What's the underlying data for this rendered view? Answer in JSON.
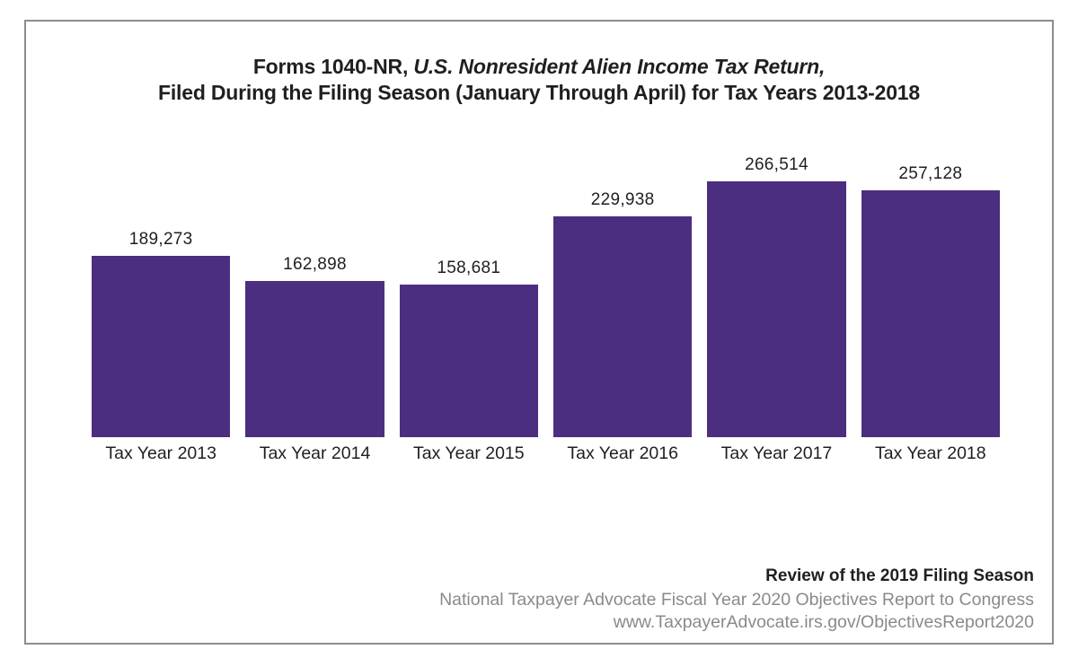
{
  "chart_data": {
    "type": "bar",
    "title_line1_regular": "Forms 1040-NR, ",
    "title_line1_italic": "U.S. Nonresident Alien Income Tax Return,",
    "title_line2": "Filed During the Filing Season (January Through April) for Tax Years 2013-2018",
    "title": "Forms 1040-NR, U.S. Nonresident Alien Income Tax Return, Filed During the Filing Season (January Through April) for Tax Years 2013-2018",
    "categories": [
      "Tax Year 2013",
      "Tax Year 2014",
      "Tax Year 2015",
      "Tax Year 2016",
      "Tax Year 2017",
      "Tax Year 2018"
    ],
    "values": [
      189273,
      162898,
      158681,
      229938,
      266514,
      257128
    ],
    "value_labels": [
      "189,273",
      "162,898",
      "158,681",
      "229,938",
      "266,514",
      "257,128"
    ],
    "xlabel": "",
    "ylabel": "",
    "ylim": [
      0,
      280000
    ],
    "grid": false,
    "legend": false,
    "axes_shown": false,
    "bar_color": "#4C2E80"
  },
  "footer": {
    "line1": "Review of the 2019 Filing Season",
    "line2": "National Taxpayer Advocate Fiscal Year 2020 Objectives Report to Congress",
    "line3": "www.TaxpayerAdvocate.irs.gov/ObjectivesReport2020"
  },
  "colors": {
    "bar": "#4C2E80",
    "text": "#221E1F",
    "muted_text": "#8A8A8A",
    "frame_border": "#8C8C8C",
    "background": "#FFFFFF"
  }
}
